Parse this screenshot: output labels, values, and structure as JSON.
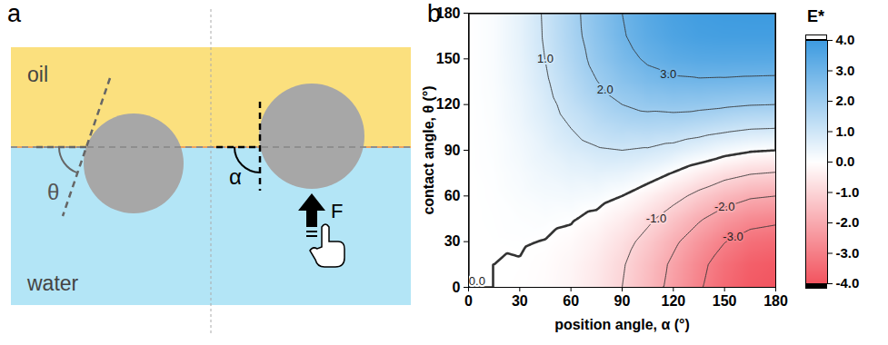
{
  "panel_labels": [
    "a",
    "b"
  ],
  "diagram": {
    "upper_phase": "oil",
    "lower_phase": "water",
    "left_angle": "θ",
    "right_angle": "α",
    "force": "F"
  },
  "chart_data": {
    "type": "heatmap",
    "x_label": "position angle, α (°)",
    "y_label": "contact angle, θ (°)",
    "x": [
      0,
      15,
      30,
      45,
      60,
      75,
      90,
      105,
      120,
      135,
      150,
      165,
      180
    ],
    "y": [
      0,
      15,
      30,
      45,
      60,
      75,
      90,
      105,
      120,
      135,
      150,
      165,
      180
    ],
    "values": [
      [
        0,
        0.0,
        -0.02,
        -0.09,
        -0.25,
        -0.55,
        -1.0,
        -1.58,
        -2.25,
        -2.91,
        -3.48,
        -3.86,
        -4.0
      ],
      [
        0,
        0.0,
        -0.01,
        -0.07,
        -0.22,
        -0.5,
        -0.93,
        -1.5,
        -2.15,
        -2.8,
        -3.35,
        -3.73,
        -3.86
      ],
      [
        0,
        0.01,
        0.02,
        -0.01,
        -0.12,
        -0.35,
        -0.73,
        -1.25,
        -1.85,
        -2.46,
        -2.98,
        -3.34,
        -3.46
      ],
      [
        0,
        0.02,
        0.06,
        0.09,
        0.04,
        -0.12,
        -0.41,
        -0.85,
        -1.37,
        -1.91,
        -2.39,
        -2.71,
        -2.83
      ],
      [
        0,
        0.03,
        0.12,
        0.21,
        0.25,
        0.19,
        0.0,
        -0.33,
        -0.75,
        -1.21,
        -1.62,
        -1.9,
        -2.0
      ],
      [
        0,
        0.05,
        0.18,
        0.35,
        0.49,
        0.55,
        0.48,
        0.28,
        -0.03,
        -0.38,
        -0.72,
        -0.95,
        -1.04
      ],
      [
        0,
        0.07,
        0.25,
        0.5,
        0.75,
        0.93,
        1.0,
        0.93,
        0.75,
        0.5,
        0.25,
        0.07,
        0.0
      ],
      [
        0,
        0.08,
        0.32,
        0.65,
        1.01,
        1.32,
        1.52,
        1.58,
        1.53,
        1.38,
        1.22,
        1.08,
        1.04
      ],
      [
        0,
        0.1,
        0.38,
        0.79,
        1.25,
        1.67,
        2.0,
        2.19,
        2.25,
        2.21,
        2.12,
        2.03,
        2.0
      ],
      [
        0,
        0.12,
        0.44,
        0.91,
        1.46,
        1.98,
        2.41,
        2.71,
        2.87,
        2.91,
        2.89,
        2.85,
        2.83
      ],
      [
        0,
        0.13,
        0.48,
        1.01,
        1.62,
        2.22,
        2.73,
        3.11,
        3.35,
        3.46,
        3.48,
        3.47,
        3.46
      ],
      [
        0,
        0.13,
        0.51,
        1.07,
        1.72,
        2.36,
        2.93,
        3.36,
        3.65,
        3.8,
        3.85,
        3.86,
        3.86
      ],
      [
        0,
        0.13,
        0.52,
        1.09,
        1.75,
        2.42,
        3.0,
        3.45,
        3.75,
        3.91,
        3.98,
        4.0,
        4.0
      ]
    ],
    "xlim": [
      0,
      180
    ],
    "ylim": [
      0,
      180
    ],
    "xticks": [
      0,
      30,
      60,
      90,
      120,
      150,
      180
    ],
    "yticks": [
      0,
      30,
      60,
      90,
      120,
      150,
      180
    ],
    "colorbar": {
      "title": "E*",
      "range": [
        -4,
        4
      ],
      "ticks": [
        {
          "value": 4,
          "label": "4.0"
        },
        {
          "value": 3,
          "label": "3.0"
        },
        {
          "value": 2,
          "label": "2.0"
        },
        {
          "value": 1,
          "label": "1.0"
        },
        {
          "value": 0,
          "label": "0.0"
        },
        {
          "value": -1,
          "label": "-1.0"
        },
        {
          "value": -2,
          "label": "-2.0"
        },
        {
          "value": -3,
          "label": "-3.0"
        },
        {
          "value": -4,
          "label": "-4.0"
        }
      ],
      "colors": [
        "#f2545f",
        "#ffffff",
        "#3d9be0"
      ]
    },
    "contour_labels": [
      {
        "value": 0,
        "label": "0.0",
        "x": 5,
        "y": 4
      },
      {
        "value": 1,
        "label": "1.0",
        "x": 45,
        "y": 150
      },
      {
        "value": 2,
        "label": "2.0",
        "x": 80,
        "y": 130
      },
      {
        "value": 3,
        "label": "3.0",
        "x": 117,
        "y": 140
      },
      {
        "value": -1,
        "label": "-1.0",
        "x": 110,
        "y": 45
      },
      {
        "value": -2,
        "label": "-2.0",
        "x": 150,
        "y": 53
      },
      {
        "value": -3,
        "label": "-3.0",
        "x": 155,
        "y": 33
      }
    ]
  }
}
